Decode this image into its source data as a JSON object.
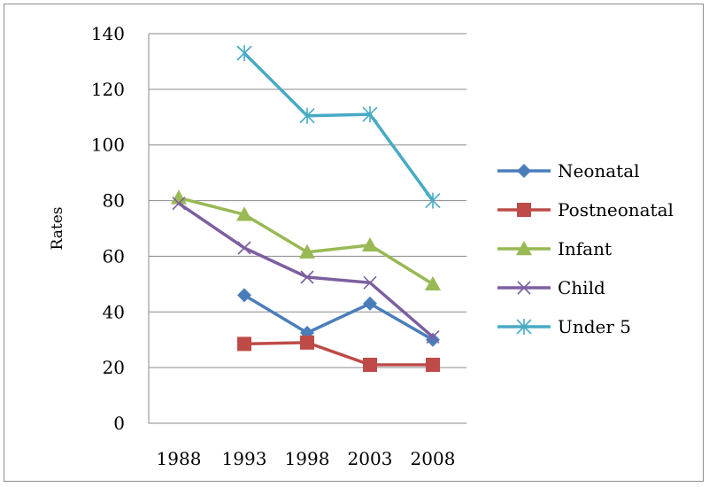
{
  "chart_data": {
    "type": "line",
    "title": "",
    "xlabel": "",
    "ylabel": "Rates",
    "categories": [
      "1988",
      "1993",
      "1998",
      "2003",
      "2008"
    ],
    "ylim": [
      0,
      140
    ],
    "yticks": [
      0,
      20,
      40,
      60,
      80,
      100,
      120,
      140
    ],
    "grid": "horizontal",
    "legend_position": "right",
    "series": [
      {
        "name": "Neonatal",
        "color": "#4a7ebb",
        "marker": "diamond",
        "values": [
          null,
          46,
          32.5,
          43,
          30
        ]
      },
      {
        "name": "Postneonatal",
        "color": "#be4b48",
        "marker": "square",
        "values": [
          null,
          28.5,
          29,
          21,
          21
        ]
      },
      {
        "name": "Infant",
        "color": "#98b954",
        "marker": "triangle",
        "values": [
          81,
          75,
          61.5,
          64,
          50
        ]
      },
      {
        "name": "Child",
        "color": "#7d5fa0",
        "marker": "x",
        "values": [
          79,
          63,
          52.5,
          50.5,
          31
        ]
      },
      {
        "name": "Under 5",
        "color": "#46aac5",
        "marker": "star",
        "values": [
          null,
          133,
          110.5,
          111,
          80
        ]
      }
    ]
  }
}
